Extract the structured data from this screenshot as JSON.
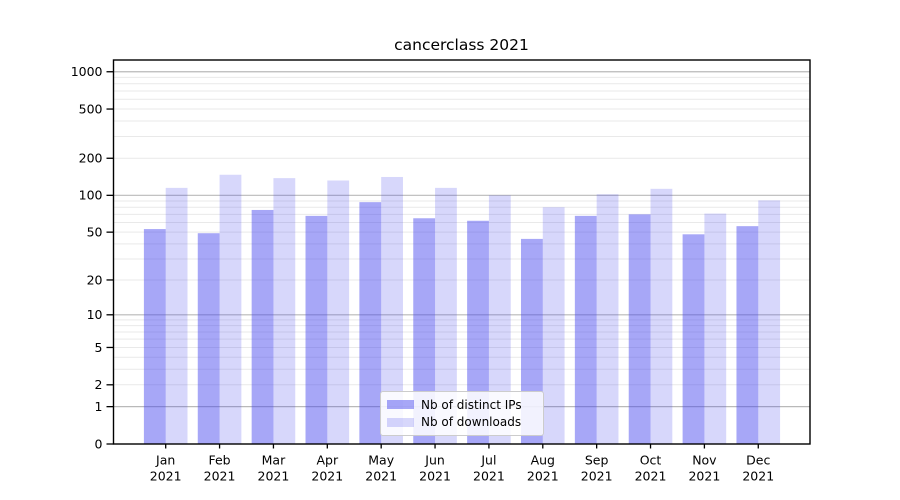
{
  "chart_data": {
    "type": "bar",
    "title": "cancerclass 2021",
    "categories": [
      "Jan\n2021",
      "Feb\n2021",
      "Mar\n2021",
      "Apr\n2021",
      "May\n2021",
      "Jun\n2021",
      "Jul\n2021",
      "Aug\n2021",
      "Sep\n2021",
      "Oct\n2021",
      "Nov\n2021",
      "Dec\n2021"
    ],
    "series": [
      {
        "name": "Nb of distinct IPs",
        "values": [
          53,
          49,
          76,
          68,
          88,
          65,
          62,
          44,
          68,
          70,
          48,
          56
        ]
      },
      {
        "name": "Nb of downloads",
        "values": [
          115,
          147,
          138,
          132,
          141,
          115,
          100,
          80,
          102,
          113,
          71,
          91
        ]
      }
    ],
    "xlabel": "",
    "ylabel": "",
    "y_scale": "log1p",
    "y_tick_labels": [
      "0",
      "1",
      "2",
      "5",
      "10",
      "20",
      "50",
      "100",
      "200",
      "500",
      "1000"
    ],
    "y_ticks": [
      0,
      1,
      2,
      5,
      10,
      20,
      50,
      100,
      200,
      500,
      1000
    ],
    "ylim": [
      0,
      1244
    ],
    "grid": true,
    "legend_position": "lower center"
  },
  "colors": {
    "bar_distinct_ips": "rgba(68,68,238,0.47)",
    "bar_downloads": "rgba(68,68,238,0.21)",
    "grid_major": "#b9b9b9",
    "grid_minor": "#e9e9e9",
    "axis": "#000000",
    "text": "#000000"
  }
}
